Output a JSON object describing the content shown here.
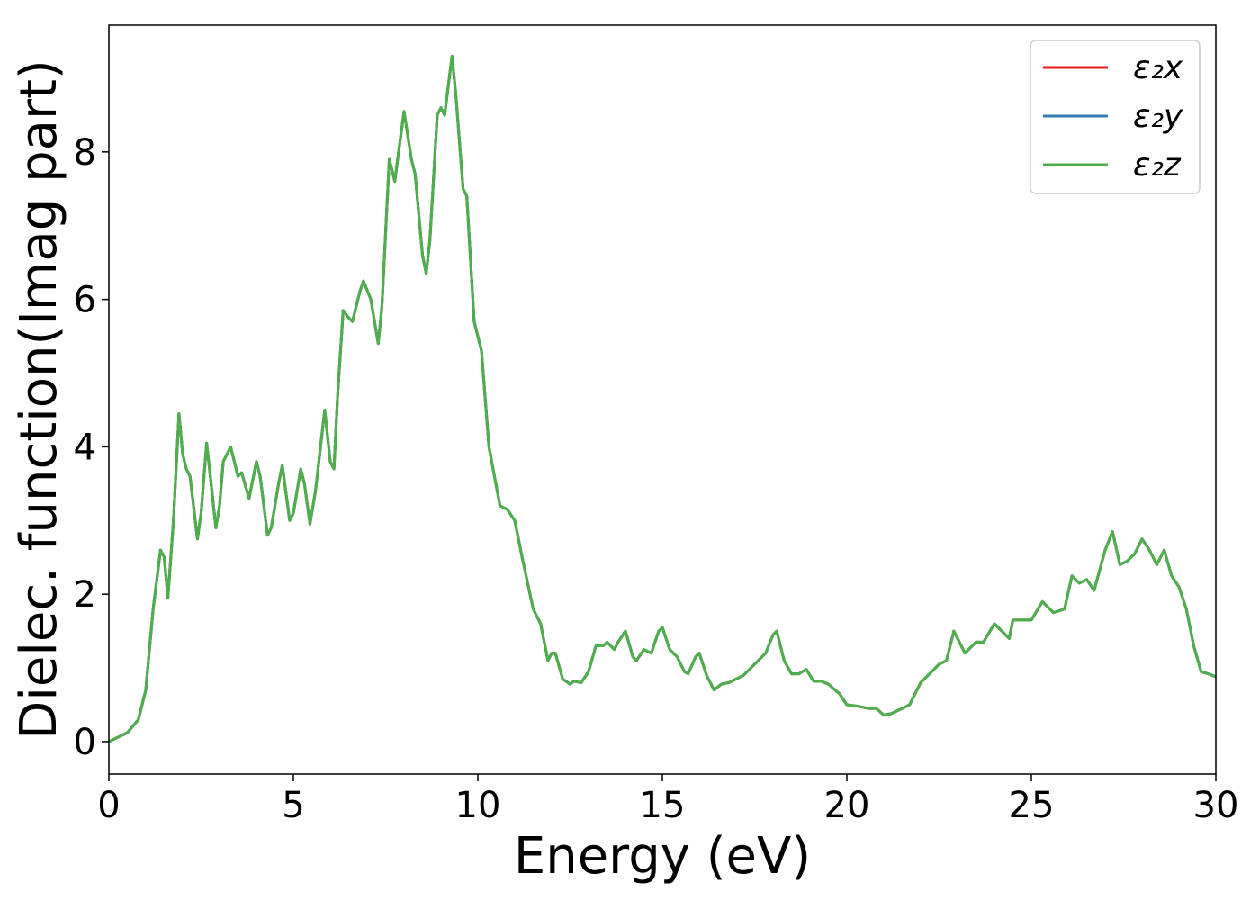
{
  "chart_data": {
    "type": "line",
    "x_label": "Energy (eV)",
    "y_label": "Dielec. function(Imag part)",
    "xlim": [
      0,
      30
    ],
    "ylim": [
      -0.44,
      9.72
    ],
    "xticks": [
      0,
      5,
      10,
      15,
      20,
      25,
      30
    ],
    "yticks": [
      0,
      2,
      4,
      6,
      8
    ],
    "legend": "upper right",
    "grid": false,
    "x": [
      0,
      0.5,
      0.8,
      1.0,
      1.2,
      1.4,
      1.5,
      1.6,
      1.75,
      1.9,
      2.0,
      2.1,
      2.2,
      2.4,
      2.5,
      2.65,
      2.75,
      2.9,
      3.0,
      3.1,
      3.3,
      3.5,
      3.6,
      3.8,
      4.0,
      4.1,
      4.3,
      4.4,
      4.6,
      4.7,
      4.9,
      5.0,
      5.2,
      5.3,
      5.45,
      5.6,
      5.85,
      6.0,
      6.1,
      6.2,
      6.35,
      6.5,
      6.6,
      6.8,
      6.9,
      7.1,
      7.3,
      7.4,
      7.6,
      7.75,
      7.8,
      8.0,
      8.2,
      8.3,
      8.5,
      8.6,
      8.7,
      8.9,
      9.0,
      9.1,
      9.3,
      9.4,
      9.6,
      9.7,
      9.9,
      10.1,
      10.3,
      10.6,
      10.8,
      11.0,
      11.2,
      11.5,
      11.7,
      11.9,
      12.0,
      12.1,
      12.3,
      12.5,
      12.6,
      12.8,
      13.0,
      13.2,
      13.4,
      13.5,
      13.7,
      13.8,
      14.0,
      14.2,
      14.3,
      14.5,
      14.7,
      14.9,
      15.0,
      15.2,
      15.4,
      15.6,
      15.7,
      15.9,
      16.0,
      16.2,
      16.4,
      16.6,
      16.8,
      17.0,
      17.2,
      17.5,
      17.8,
      18.0,
      18.1,
      18.3,
      18.5,
      18.7,
      18.9,
      19.1,
      19.3,
      19.5,
      19.8,
      20.0,
      20.3,
      20.6,
      20.8,
      21.0,
      21.2,
      21.5,
      21.7,
      22.0,
      22.3,
      22.5,
      22.7,
      22.9,
      23.0,
      23.2,
      23.5,
      23.7,
      24.0,
      24.2,
      24.4,
      24.5,
      24.7,
      25.0,
      25.3,
      25.6,
      25.9,
      26.1,
      26.3,
      26.5,
      26.7,
      27.0,
      27.2,
      27.4,
      27.6,
      27.8,
      28.0,
      28.2,
      28.4,
      28.6,
      28.8,
      29.0,
      29.2,
      29.4,
      29.6,
      29.8,
      30.0
    ],
    "series": [
      {
        "name": "ε₂x",
        "color": "#e41a1c",
        "values": [
          0,
          0.12,
          0.3,
          0.7,
          1.8,
          2.6,
          2.5,
          1.95,
          3.0,
          4.45,
          3.9,
          3.7,
          3.6,
          2.75,
          3.1,
          4.05,
          3.6,
          2.9,
          3.2,
          3.8,
          4.0,
          3.6,
          3.65,
          3.3,
          3.8,
          3.6,
          2.8,
          2.9,
          3.5,
          3.75,
          3.0,
          3.1,
          3.7,
          3.5,
          2.95,
          3.4,
          4.5,
          3.8,
          3.7,
          4.7,
          5.85,
          5.75,
          5.7,
          6.1,
          6.25,
          6.0,
          5.4,
          5.9,
          7.9,
          7.6,
          7.8,
          8.55,
          7.9,
          7.7,
          6.6,
          6.35,
          6.8,
          8.5,
          8.6,
          8.5,
          9.3,
          8.8,
          7.5,
          7.4,
          5.7,
          5.3,
          4.0,
          3.2,
          3.15,
          3.0,
          2.5,
          1.8,
          1.6,
          1.1,
          1.2,
          1.2,
          0.85,
          0.78,
          0.82,
          0.8,
          0.95,
          1.3,
          1.3,
          1.35,
          1.25,
          1.35,
          1.5,
          1.15,
          1.1,
          1.25,
          1.2,
          1.5,
          1.55,
          1.25,
          1.15,
          0.95,
          0.92,
          1.15,
          1.2,
          0.9,
          0.7,
          0.78,
          0.8,
          0.85,
          0.9,
          1.05,
          1.2,
          1.45,
          1.5,
          1.1,
          0.92,
          0.92,
          0.98,
          0.82,
          0.82,
          0.78,
          0.65,
          0.5,
          0.48,
          0.45,
          0.45,
          0.36,
          0.38,
          0.45,
          0.5,
          0.8,
          0.95,
          1.05,
          1.1,
          1.5,
          1.4,
          1.2,
          1.35,
          1.35,
          1.6,
          1.5,
          1.4,
          1.65,
          1.65,
          1.65,
          1.9,
          1.75,
          1.8,
          2.25,
          2.15,
          2.2,
          2.05,
          2.6,
          2.85,
          2.4,
          2.45,
          2.55,
          2.75,
          2.6,
          2.4,
          2.6,
          2.25,
          2.1,
          1.8,
          1.3,
          0.95,
          0.92,
          0.88
        ]
      },
      {
        "name": "ε₂y",
        "color": "#377eb8",
        "values": [
          0,
          0.12,
          0.3,
          0.7,
          1.8,
          2.6,
          2.5,
          1.95,
          3.0,
          4.45,
          3.9,
          3.7,
          3.6,
          2.75,
          3.1,
          4.05,
          3.6,
          2.9,
          3.2,
          3.8,
          4.0,
          3.6,
          3.65,
          3.3,
          3.8,
          3.6,
          2.8,
          2.9,
          3.5,
          3.75,
          3.0,
          3.1,
          3.7,
          3.5,
          2.95,
          3.4,
          4.5,
          3.8,
          3.7,
          4.7,
          5.85,
          5.75,
          5.7,
          6.1,
          6.25,
          6.0,
          5.4,
          5.9,
          7.9,
          7.6,
          7.8,
          8.55,
          7.9,
          7.7,
          6.6,
          6.35,
          6.8,
          8.5,
          8.6,
          8.5,
          9.3,
          8.8,
          7.5,
          7.4,
          5.7,
          5.3,
          4.0,
          3.2,
          3.15,
          3.0,
          2.5,
          1.8,
          1.6,
          1.1,
          1.2,
          1.2,
          0.85,
          0.78,
          0.82,
          0.8,
          0.95,
          1.3,
          1.3,
          1.35,
          1.25,
          1.35,
          1.5,
          1.15,
          1.1,
          1.25,
          1.2,
          1.5,
          1.55,
          1.25,
          1.15,
          0.95,
          0.92,
          1.15,
          1.2,
          0.9,
          0.7,
          0.78,
          0.8,
          0.85,
          0.9,
          1.05,
          1.2,
          1.45,
          1.5,
          1.1,
          0.92,
          0.92,
          0.98,
          0.82,
          0.82,
          0.78,
          0.65,
          0.5,
          0.48,
          0.45,
          0.45,
          0.36,
          0.38,
          0.45,
          0.5,
          0.8,
          0.95,
          1.05,
          1.1,
          1.5,
          1.4,
          1.2,
          1.35,
          1.35,
          1.6,
          1.5,
          1.4,
          1.65,
          1.65,
          1.65,
          1.9,
          1.75,
          1.8,
          2.25,
          2.15,
          2.2,
          2.05,
          2.6,
          2.85,
          2.4,
          2.45,
          2.55,
          2.75,
          2.6,
          2.4,
          2.6,
          2.25,
          2.1,
          1.8,
          1.3,
          0.95,
          0.92,
          0.88
        ]
      },
      {
        "name": "ε₂z",
        "color": "#4daf4a",
        "values": [
          0,
          0.12,
          0.3,
          0.7,
          1.8,
          2.6,
          2.5,
          1.95,
          3.0,
          4.45,
          3.9,
          3.7,
          3.6,
          2.75,
          3.1,
          4.05,
          3.6,
          2.9,
          3.2,
          3.8,
          4.0,
          3.6,
          3.65,
          3.3,
          3.8,
          3.6,
          2.8,
          2.9,
          3.5,
          3.75,
          3.0,
          3.1,
          3.7,
          3.5,
          2.95,
          3.4,
          4.5,
          3.8,
          3.7,
          4.7,
          5.85,
          5.75,
          5.7,
          6.1,
          6.25,
          6.0,
          5.4,
          5.9,
          7.9,
          7.6,
          7.8,
          8.55,
          7.9,
          7.7,
          6.6,
          6.35,
          6.8,
          8.5,
          8.6,
          8.5,
          9.3,
          8.8,
          7.5,
          7.4,
          5.7,
          5.3,
          4.0,
          3.2,
          3.15,
          3.0,
          2.5,
          1.8,
          1.6,
          1.1,
          1.2,
          1.2,
          0.85,
          0.78,
          0.82,
          0.8,
          0.95,
          1.3,
          1.3,
          1.35,
          1.25,
          1.35,
          1.5,
          1.15,
          1.1,
          1.25,
          1.2,
          1.5,
          1.55,
          1.25,
          1.15,
          0.95,
          0.92,
          1.15,
          1.2,
          0.9,
          0.7,
          0.78,
          0.8,
          0.85,
          0.9,
          1.05,
          1.2,
          1.45,
          1.5,
          1.1,
          0.92,
          0.92,
          0.98,
          0.82,
          0.82,
          0.78,
          0.65,
          0.5,
          0.48,
          0.45,
          0.45,
          0.36,
          0.38,
          0.45,
          0.5,
          0.8,
          0.95,
          1.05,
          1.1,
          1.5,
          1.4,
          1.2,
          1.35,
          1.35,
          1.6,
          1.5,
          1.4,
          1.65,
          1.65,
          1.65,
          1.9,
          1.75,
          1.8,
          2.25,
          2.15,
          2.2,
          2.05,
          2.6,
          2.85,
          2.4,
          2.45,
          2.55,
          2.75,
          2.6,
          2.4,
          2.6,
          2.25,
          2.1,
          1.8,
          1.3,
          0.95,
          0.92,
          0.88
        ]
      }
    ]
  }
}
